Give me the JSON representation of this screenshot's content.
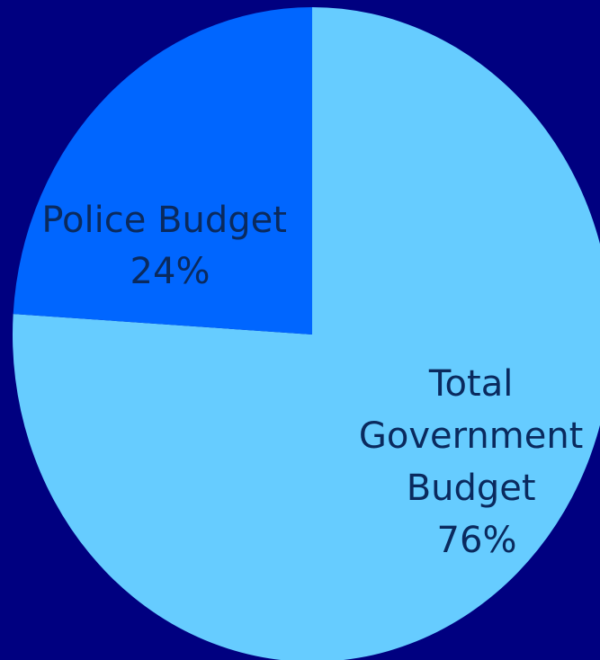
{
  "chart_data": {
    "type": "pie",
    "slices": [
      {
        "label_lines": [
          "Total",
          "Government",
          "Budget"
        ],
        "percent_label": "76%",
        "value": 76,
        "color": "#66ccff"
      },
      {
        "label_lines": [
          "Police Budget"
        ],
        "percent_label": "24%",
        "value": 24,
        "color": "#0066ff"
      }
    ]
  },
  "colors": {
    "background": "#000080",
    "label_text": "#0a2a5e"
  }
}
